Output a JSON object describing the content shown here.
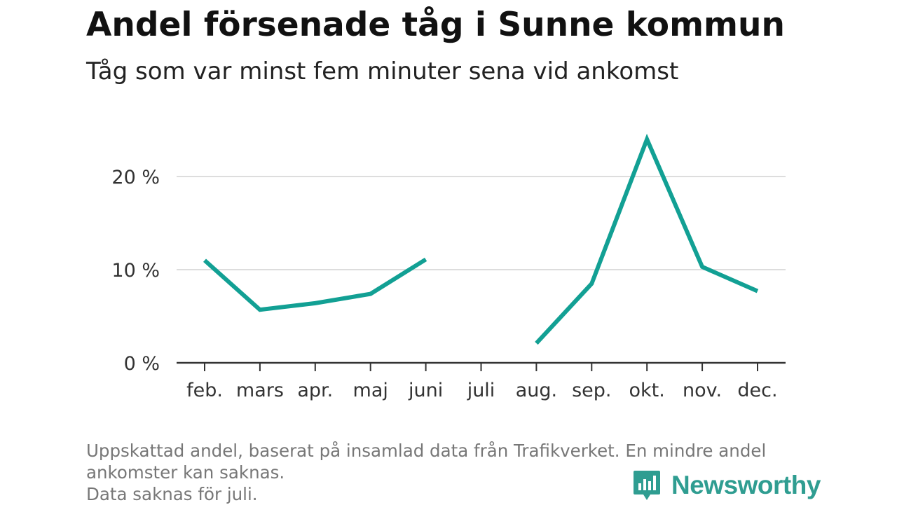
{
  "title": "Andel försenade tåg i Sunne kommun",
  "subtitle": "Tåg som var minst fem minuter sena vid ankomst",
  "footnote": {
    "line1": "Uppskattad andel, baserat på insamlad data från Trafikverket. En mindre andel",
    "line2": "ankomster kan saknas.",
    "line3": "Data saknas för juli."
  },
  "logo": {
    "text": "Newsworthy",
    "icon": "newsworthy-bar-chart-icon"
  },
  "colors": {
    "line": "#12a094",
    "grid": "#dddddd",
    "axis": "#333333",
    "brand": "#2f9d91"
  },
  "chart_data": {
    "type": "line",
    "title": "Andel försenade tåg i Sunne kommun",
    "subtitle": "Tåg som var minst fem minuter sena vid ankomst",
    "categories": [
      "feb.",
      "mars",
      "apr.",
      "maj",
      "juni",
      "juli",
      "aug.",
      "sep.",
      "okt.",
      "nov.",
      "dec."
    ],
    "series": [
      {
        "name": "Andel försenade tåg",
        "values": [
          11.0,
          5.7,
          6.4,
          7.4,
          11.1,
          null,
          2.1,
          8.5,
          24.0,
          10.3,
          7.7
        ]
      }
    ],
    "yticks": [
      0,
      10,
      20
    ],
    "ytick_labels": [
      "0 %",
      "10 %",
      "20 %"
    ],
    "ylim": [
      0,
      25
    ],
    "xlabel": "",
    "ylabel": "",
    "grid": true
  }
}
